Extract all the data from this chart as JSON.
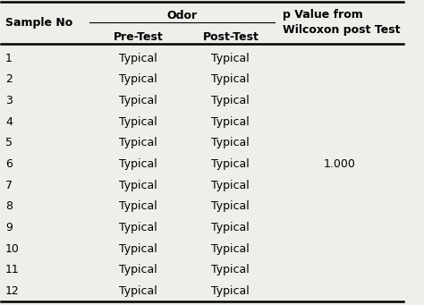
{
  "sample_nos": [
    "1",
    "2",
    "3",
    "4",
    "5",
    "6",
    "7",
    "8",
    "9",
    "10",
    "11",
    "12"
  ],
  "pre_test": [
    "Typical",
    "Typical",
    "Typical",
    "Typical",
    "Typical",
    "Typical",
    "Typical",
    "Typical",
    "Typical",
    "Typical",
    "Typical",
    "Typical"
  ],
  "post_test": [
    "Typical",
    "Typical",
    "Typical",
    "Typical",
    "Typical",
    "Typical",
    "Typical",
    "Typical",
    "Typical",
    "Typical",
    "Typical",
    "Typical"
  ],
  "p_value": "1.000",
  "p_value_row_index": 5,
  "col0_header": "Sample No",
  "col1_group_header": "Odor",
  "col1_sub_header": "Pre-Test",
  "col2_sub_header": "Post-Test",
  "col3_header_line1": "p Value from",
  "col3_header_line2": "Wilcoxon post Test",
  "bg_color": "#f0eeeb",
  "line_color": "#000000",
  "text_color": "#000000",
  "font_size": 9,
  "header_font_size": 9
}
